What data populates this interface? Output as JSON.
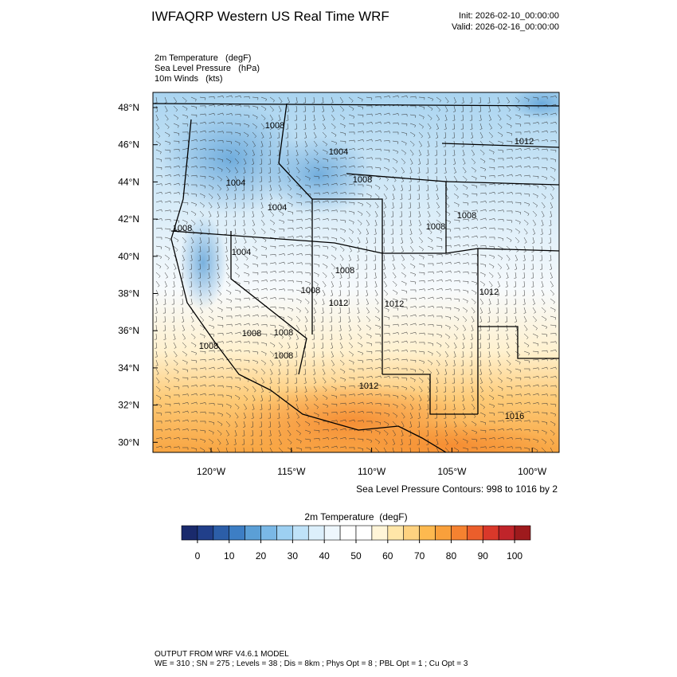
{
  "header": {
    "title": "IWFAQRP Western US Real Time WRF",
    "init": "Init: 2026-02-10_00:00:00",
    "valid": "Valid: 2026-02-16_00:00:00"
  },
  "fields": [
    "2m Temperature   (degF)",
    "Sea Level Pressure   (hPa)",
    "10m Winds   (kts)"
  ],
  "map": {
    "lat_labels": [
      "48°N",
      "46°N",
      "44°N",
      "42°N",
      "40°N",
      "38°N",
      "36°N",
      "34°N",
      "32°N",
      "30°N"
    ],
    "lon_labels": [
      "120°W",
      "115°W",
      "110°W",
      "105°W",
      "100°W"
    ],
    "contour_labels": [
      "1008",
      "1012",
      "1004",
      "1008",
      "1004",
      "1004",
      "1008",
      "1008",
      "1008",
      "1004",
      "1008",
      "1012",
      "1008",
      "1012",
      "1012",
      "1008",
      "1008",
      "1008",
      "1008",
      "1012",
      "1016"
    ],
    "contour_note": "Sea Level Pressure Contours: 998 to 1016 by 2"
  },
  "colorbar": {
    "title": "2m Temperature  (degF)",
    "colors": [
      "#1a2a6c",
      "#213f8a",
      "#2c5ea8",
      "#3d7ec4",
      "#5b9fd6",
      "#7ab8e6",
      "#9dd0f2",
      "#bfe2f8",
      "#dceffb",
      "#eef7fd",
      "#ffffff",
      "#ffffff",
      "#fff5d8",
      "#ffe6a8",
      "#fed280",
      "#fdb94f",
      "#f9a03b",
      "#f58230",
      "#eb5e2b",
      "#d9382a",
      "#c0242a",
      "#9e1a1d"
    ],
    "ticks": [
      0,
      10,
      20,
      30,
      40,
      50,
      60,
      70,
      80,
      90,
      100
    ]
  },
  "footer": [
    "OUTPUT FROM WRF V4.6.1 MODEL",
    "WE = 310 ; SN = 275 ; Levels = 38 ; Dis = 8km ; Phys Opt = 8 ; PBL Opt = 1 ; Cu Opt = 3"
  ]
}
